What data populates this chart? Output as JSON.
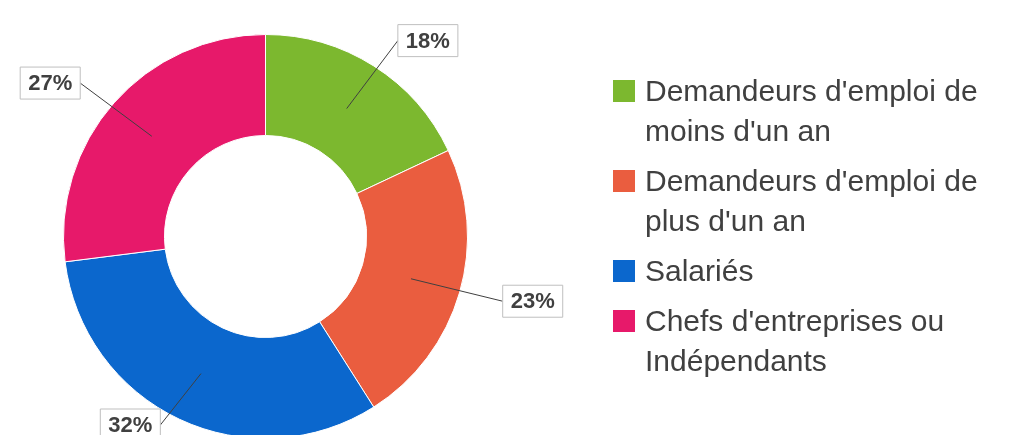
{
  "chart_data": {
    "type": "donut",
    "categories": [
      "Demandeurs d'emploi de moins d'un an",
      "Demandeurs d'emploi de plus d'un an",
      "Salariés",
      "Chefs d'entreprises ou Indépendants"
    ],
    "values": [
      18,
      23,
      32,
      27
    ],
    "colors": [
      "#7cb82f",
      "#ea5d3f",
      "#0b67cd",
      "#e7196a"
    ],
    "value_labels": [
      "18%",
      "23%",
      "32%",
      "27%"
    ],
    "legend": "right"
  }
}
